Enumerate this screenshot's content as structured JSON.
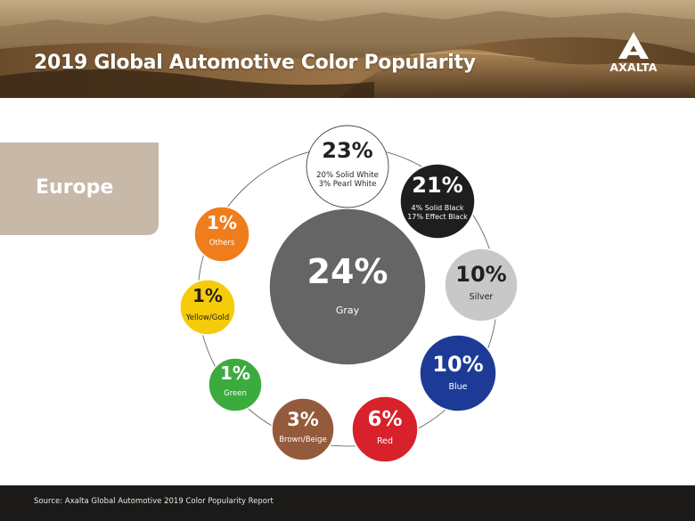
{
  "header": {
    "title": "2019 Global Automotive Color Popularity",
    "logo_text": "AXALTA"
  },
  "region": {
    "label": "Europe"
  },
  "footer": {
    "source": "Source: Axalta Global Automotive 2019 Color Popularity Report"
  },
  "colors": {
    "white": "#ffffff",
    "black": "#1e1e1e",
    "silver": "#c8c8c8",
    "blue": "#1d3b96",
    "red": "#d7212b",
    "brown": "#935a3b",
    "green": "#3cab3e",
    "yellow": "#f6cc0a",
    "orange": "#f07d1b",
    "gray": "#656565",
    "tab": "#c7b8a8",
    "footer": "#1b1a18"
  },
  "chart_data": {
    "type": "bubble",
    "title": "2019 Global Automotive Color Popularity",
    "subtitle": "Europe",
    "unit": "%",
    "categories": [
      "Gray",
      "White",
      "Black",
      "Silver",
      "Blue",
      "Red",
      "Brown/Beige",
      "Green",
      "Yellow/Gold",
      "Others"
    ],
    "values": [
      24,
      23,
      21,
      10,
      10,
      6,
      3,
      1,
      1,
      1
    ],
    "items": [
      {
        "label": "Gray",
        "percent": "24%",
        "value": 24,
        "breakdown": [],
        "fill": "#656565",
        "text_color": "#ffffff"
      },
      {
        "label": "",
        "percent": "23%",
        "value": 23,
        "breakdown": [
          "20% Solid White",
          "3% Pearl White"
        ],
        "fill": "#ffffff",
        "text_color": "#231f20"
      },
      {
        "label": "",
        "percent": "21%",
        "value": 21,
        "breakdown": [
          "4% Solid Black",
          "17% Effect Black"
        ],
        "fill": "#1e1e1e",
        "text_color": "#ffffff"
      },
      {
        "label": "Silver",
        "percent": "10%",
        "value": 10,
        "breakdown": [],
        "fill": "#c8c8c8",
        "text_color": "#231f20"
      },
      {
        "label": "Blue",
        "percent": "10%",
        "value": 10,
        "breakdown": [],
        "fill": "#1d3b96",
        "text_color": "#ffffff"
      },
      {
        "label": "Red",
        "percent": "6%",
        "value": 6,
        "breakdown": [],
        "fill": "#d7212b",
        "text_color": "#ffffff"
      },
      {
        "label": "Brown/Beige",
        "percent": "3%",
        "value": 3,
        "breakdown": [],
        "fill": "#935a3b",
        "text_color": "#ffffff"
      },
      {
        "label": "Green",
        "percent": "1%",
        "value": 1,
        "breakdown": [],
        "fill": "#3cab3e",
        "text_color": "#ffffff"
      },
      {
        "label": "Yellow/Gold",
        "percent": "1%",
        "value": 1,
        "breakdown": [],
        "fill": "#f6cc0a",
        "text_color": "#231f20"
      },
      {
        "label": "Others",
        "percent": "1%",
        "value": 1,
        "breakdown": [],
        "fill": "#f07d1b",
        "text_color": "#ffffff"
      }
    ]
  }
}
